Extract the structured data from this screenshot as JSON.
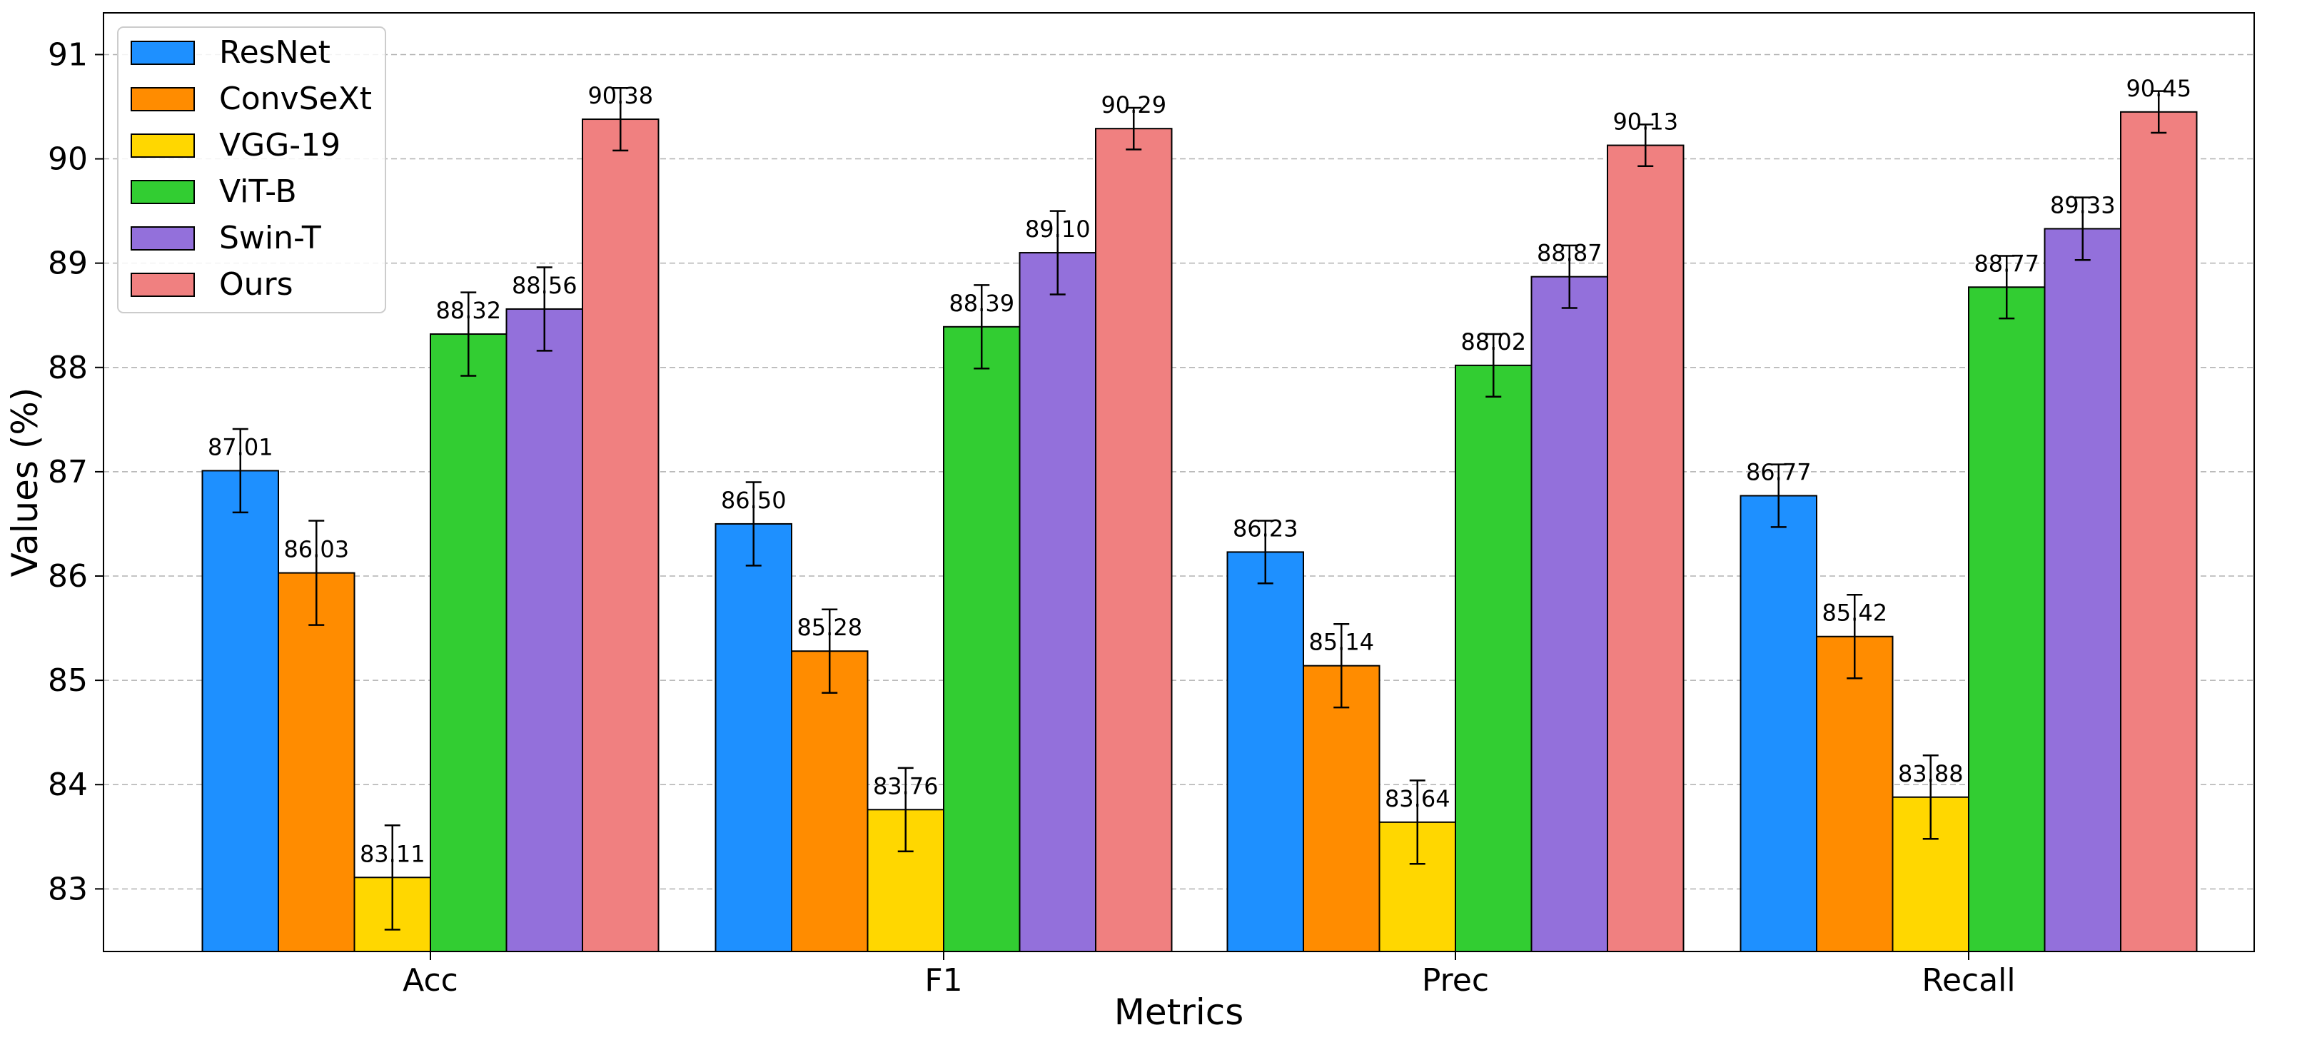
{
  "chart_data": {
    "type": "bar",
    "title": "",
    "xlabel": "Metrics",
    "ylabel": "Values (%)",
    "categories": [
      "Acc",
      "F1",
      "Prec",
      "Recall"
    ],
    "ylim": [
      82.4,
      91.4
    ],
    "yticks": [
      83,
      84,
      85,
      86,
      87,
      88,
      89,
      90,
      91
    ],
    "grid": "y-dashed",
    "legend_position": "top-left",
    "series": [
      {
        "name": "ResNet",
        "color": "#1e90ff",
        "values": [
          87.01,
          86.5,
          86.23,
          86.77
        ],
        "labels": [
          "87.01",
          "86.50",
          "86.23",
          "86.77"
        ],
        "errors": [
          0.4,
          0.4,
          0.3,
          0.3
        ]
      },
      {
        "name": "ConvSeXt",
        "color": "#ff8c00",
        "values": [
          86.03,
          85.28,
          85.14,
          85.42
        ],
        "labels": [
          "86.03",
          "85.28",
          "85.14",
          "85.42"
        ],
        "errors": [
          0.5,
          0.4,
          0.4,
          0.4
        ]
      },
      {
        "name": "VGG-19",
        "color": "#ffd700",
        "values": [
          83.11,
          83.76,
          83.64,
          83.88
        ],
        "labels": [
          "83.11",
          "83.76",
          "83.64",
          "83.88"
        ],
        "errors": [
          0.5,
          0.4,
          0.4,
          0.4
        ]
      },
      {
        "name": "ViT-B",
        "color": "#32cd32",
        "values": [
          88.32,
          88.39,
          88.02,
          88.77
        ],
        "labels": [
          "88.32",
          "88.39",
          "88.02",
          "88.77"
        ],
        "errors": [
          0.4,
          0.4,
          0.3,
          0.3
        ]
      },
      {
        "name": "Swin-T",
        "color": "#9370db",
        "values": [
          88.56,
          89.1,
          88.87,
          89.33
        ],
        "labels": [
          "88.56",
          "89.10",
          "88.87",
          "89.33"
        ],
        "errors": [
          0.4,
          0.4,
          0.3,
          0.3
        ]
      },
      {
        "name": "Ours",
        "color": "#f08080",
        "values": [
          90.38,
          90.29,
          90.13,
          90.45
        ],
        "labels": [
          "90.38",
          "90.29",
          "90.13",
          "90.45"
        ],
        "errors": [
          0.3,
          0.2,
          0.2,
          0.2
        ]
      }
    ]
  }
}
